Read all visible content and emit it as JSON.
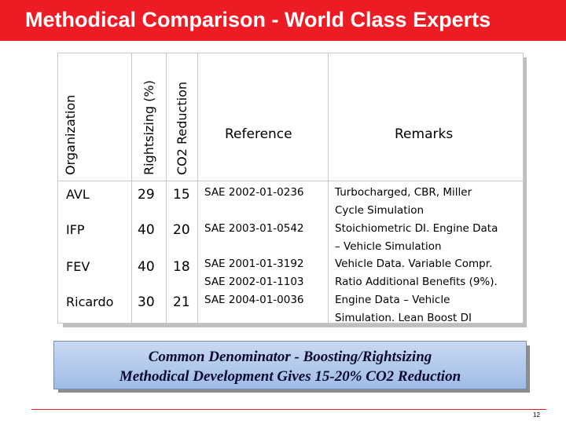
{
  "slide": {
    "title": "Methodical Comparison - World Class Experts",
    "page_number": "12"
  },
  "table": {
    "headers": {
      "organization": "Organization",
      "rightsizing": "Rightsizing (%)",
      "co2": "CO2 Reduction",
      "reference": "Reference",
      "remarks": "Remarks"
    },
    "rows": [
      {
        "org": "AVL",
        "rightsizing": "29",
        "co2": "15"
      },
      {
        "org": "IFP",
        "rightsizing": "40",
        "co2": "20"
      },
      {
        "org": "FEV",
        "rightsizing": "40",
        "co2": "18"
      },
      {
        "org": "Ricardo",
        "rightsizing": "30",
        "co2": "21"
      }
    ],
    "reference_lines": [
      "SAE 2002-01-0236",
      "SAE 2003-01-0542",
      "SAE 2001-01-3192",
      "SAE 2002-01-1103",
      "SAE 2004-01-0036"
    ],
    "remarks_lines": [
      "Turbocharged, CBR, Miller",
      "Cycle Simulation",
      "Stoichiometric DI. Engine Data",
      "– Vehicle Simulation",
      "Vehicle Data. Variable Compr.",
      "Ratio Additional Benefits (9%).",
      "Engine Data – Vehicle",
      "Simulation. Lean Boost DI"
    ]
  },
  "banner": {
    "line1": "Common Denominator - Boosting/Rightsizing",
    "line2": "Methodical Development Gives 15-20% CO2 Reduction"
  },
  "colors": {
    "title_bar": "#ed1c24",
    "banner_fill": "#b4cbec",
    "footer_rule": "#ed1c24"
  }
}
